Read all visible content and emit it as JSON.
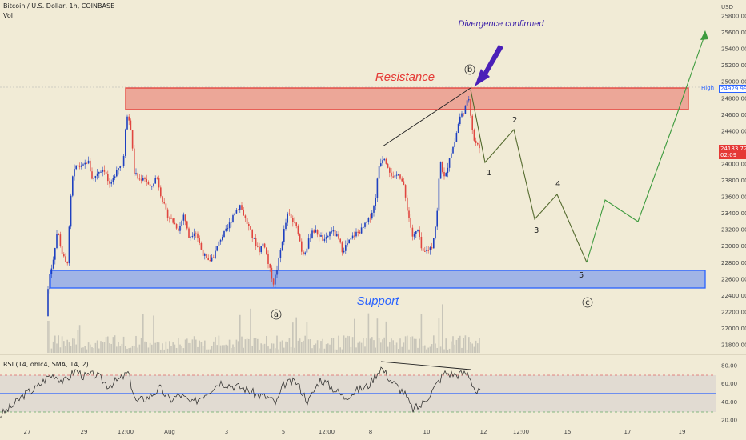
{
  "header": {
    "symbol": "Bitcoin / U.S. Dollar, 1h, COINBASE",
    "volume_label": "Vol"
  },
  "price_axis": {
    "currency": "USD",
    "ticks": [
      "25800.00",
      "25600.00",
      "25400.00",
      "25200.00",
      "25000.00",
      "24800.00",
      "24600.00",
      "24400.00",
      "24200.00",
      "24000.00",
      "23800.00",
      "23600.00",
      "23400.00",
      "23200.00",
      "23000.00",
      "22800.00",
      "22600.00",
      "22400.00",
      "22200.00",
      "22000.00",
      "21800.00"
    ],
    "high_tag": {
      "label": "High",
      "value": "24929.99"
    },
    "current_tag": {
      "value": "24183.72",
      "countdown": "02:09",
      "color": "#e53935"
    }
  },
  "time_axis": {
    "labels": [
      "27",
      "29",
      "12:00",
      "Aug",
      "3",
      "5",
      "12:00",
      "8",
      "10",
      "12",
      "12:00",
      "15",
      "17",
      "19"
    ]
  },
  "annotations": {
    "resistance_label": "Resistance",
    "support_label": "Support",
    "divergence_label": "Divergence confirmed",
    "wave_points": [
      "1",
      "2",
      "3",
      "4",
      "5"
    ],
    "circle_labels": [
      "a",
      "b",
      "c"
    ],
    "resistance_color": "#e53935",
    "support_color": "#2962ff"
  },
  "rsi": {
    "legend": "RSI (14, ohlc4, SMA, 14, 2)",
    "ticks": [
      "80.00",
      "60.00",
      "40.00",
      "20.00"
    ],
    "upper": 70,
    "lower": 30,
    "mid": 50
  },
  "colors": {
    "bull": "#1e40c0",
    "bear": "#e0463f",
    "forecast_down": "#556b2f",
    "forecast_up": "#3e9b3e"
  }
}
